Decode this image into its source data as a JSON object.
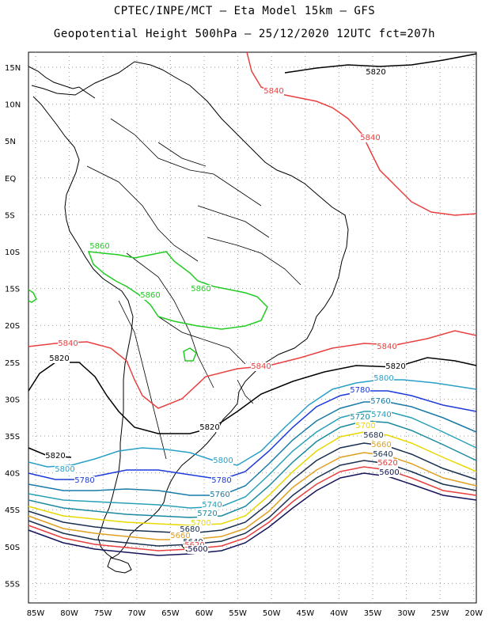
{
  "title_line1": "CPTEC/INPE/MCT –  Eta Model 15km – GFS",
  "title_line2": "Geopotential Height 500hPa – 25/12/2020 12UTC fct=207h",
  "lat_ticks": [
    "15N",
    "10N",
    "5N",
    "EQ",
    "5S",
    "10S",
    "15S",
    "20S",
    "25S",
    "30S",
    "35S",
    "40S",
    "45S",
    "50S",
    "55S"
  ],
  "lon_ticks": [
    "85W",
    "80W",
    "75W",
    "70W",
    "65W",
    "60W",
    "55W",
    "50W",
    "45W",
    "40W",
    "35W",
    "30W",
    "25W",
    "20W"
  ],
  "contour_labels": [
    {
      "text": "5820",
      "color": "#000000"
    },
    {
      "text": "5840",
      "color": "#e84040"
    },
    {
      "text": "5840",
      "color": "#e84040"
    },
    {
      "text": "5860",
      "color": "#22cc22"
    },
    {
      "text": "5860",
      "color": "#22cc22"
    },
    {
      "text": "5860",
      "color": "#22cc22"
    },
    {
      "text": "5840",
      "color": "#e84040"
    },
    {
      "text": "5840",
      "color": "#e84040"
    },
    {
      "text": "5840",
      "color": "#e84040"
    },
    {
      "text": "5820",
      "color": "#000000"
    },
    {
      "text": "5820",
      "color": "#000000"
    },
    {
      "text": "5820",
      "color": "#000000"
    },
    {
      "text": "5820",
      "color": "#000000"
    },
    {
      "text": "5800",
      "color": "#2aa0c8"
    },
    {
      "text": "5800",
      "color": "#2aa0c8"
    },
    {
      "text": "5800",
      "color": "#2aa0c8"
    },
    {
      "text": "5780",
      "color": "#1c3ad8"
    },
    {
      "text": "5780",
      "color": "#1c3ad8"
    },
    {
      "text": "5780",
      "color": "#1c3ad8"
    },
    {
      "text": "5760",
      "color": "#1a7aa8"
    },
    {
      "text": "5760",
      "color": "#1a7aa8"
    },
    {
      "text": "5740",
      "color": "#28a0b8"
    },
    {
      "text": "5740",
      "color": "#28a0b8"
    },
    {
      "text": "5720",
      "color": "#1a8aa0"
    },
    {
      "text": "5720",
      "color": "#1a8aa0"
    },
    {
      "text": "5700",
      "color": "#e8d800"
    },
    {
      "text": "5700",
      "color": "#e8d800"
    },
    {
      "text": "5680",
      "color": "#1a3050"
    },
    {
      "text": "5680",
      "color": "#1a3050"
    },
    {
      "text": "5660",
      "color": "#e0a020"
    },
    {
      "text": "5660",
      "color": "#e0a020"
    },
    {
      "text": "5640",
      "color": "#1a3050"
    },
    {
      "text": "5640",
      "color": "#1a3050"
    },
    {
      "text": "5620",
      "color": "#e84040"
    },
    {
      "text": "5620",
      "color": "#e84040"
    },
    {
      "text": "5600",
      "color": "#14145a"
    },
    {
      "text": "5600",
      "color": "#14145a"
    }
  ]
}
